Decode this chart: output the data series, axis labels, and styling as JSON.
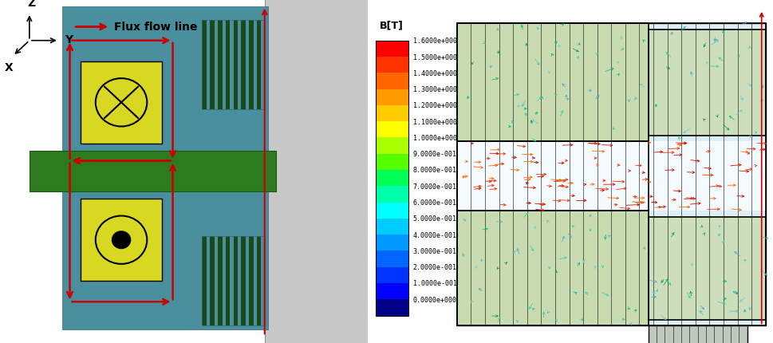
{
  "background_color": "#ffffff",
  "left_panel": {
    "teal_color": "#4a8f9e",
    "green_color": "#2e7a1e",
    "yellow_color": "#d8d822",
    "gray_color": "#c8c8c8",
    "dark_stripe_color": "#1a4a1a",
    "red_color": "#cc0000"
  },
  "colorbar": {
    "title": "B[T]",
    "labels": [
      "1.6000e+000",
      "1.5000e+000",
      "1.4000e+000",
      "1.3000e+000",
      "1.2000e+000",
      "1.1000e+000",
      "1.0000e+000",
      "9.0000e-001",
      "8.0000e-001",
      "7.0000e-001",
      "6.0000e-001",
      "5.0000e-001",
      "4.0000e-001",
      "3.0000e-001",
      "2.0000e-001",
      "1.0000e-001",
      "0.0000e+000"
    ],
    "grad_colors_top_to_bottom": [
      "#ff0000",
      "#ff3300",
      "#ff6600",
      "#ff9900",
      "#ffcc00",
      "#ffff00",
      "#aaff00",
      "#55ff00",
      "#00ff55",
      "#00ffaa",
      "#00ffff",
      "#00ccff",
      "#0099ff",
      "#0066ff",
      "#0033ff",
      "#0000ff",
      "#000088"
    ]
  },
  "fem": {
    "bg_light": "#ddeef5",
    "bg_medium": "#c8ddc8",
    "bg_gap": "#f0f8ff",
    "stator_color": "#c5d8a5"
  }
}
